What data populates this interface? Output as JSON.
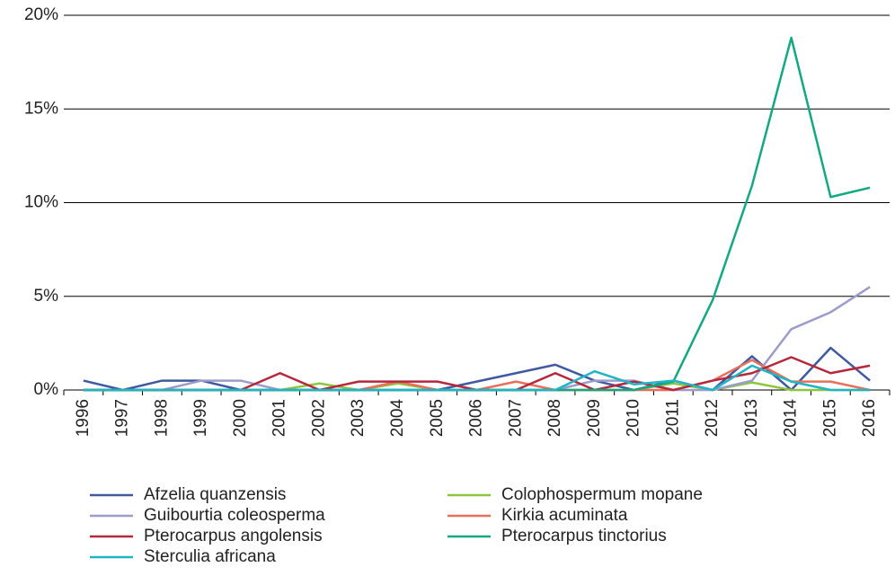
{
  "chart_data": {
    "type": "line",
    "categories": [
      "1996",
      "1997",
      "1998",
      "1999",
      "2000",
      "2001",
      "2002",
      "2003",
      "2004",
      "2005",
      "2006",
      "2007",
      "2008",
      "2009",
      "2010",
      "2011",
      "2012",
      "2013",
      "2014",
      "2015",
      "2016"
    ],
    "ylim": [
      0,
      20
    ],
    "yticks": [
      {
        "value": 0,
        "label": "0%"
      },
      {
        "value": 5,
        "label": "5%"
      },
      {
        "value": 10,
        "label": "10%"
      },
      {
        "value": 15,
        "label": "15%"
      },
      {
        "value": 20,
        "label": "20%"
      }
    ],
    "grid": true,
    "legend": "bottom",
    "series": [
      {
        "name": "Afzelia quanzensis",
        "color": "#3f5aa0",
        "values": [
          0.5,
          0,
          0.5,
          0.5,
          0,
          0,
          0,
          0,
          0,
          0,
          0.45,
          0.9,
          1.35,
          0.5,
          0,
          0.5,
          0,
          1.8,
          0,
          2.25,
          0.5
        ]
      },
      {
        "name": "Colophospermum mopane",
        "color": "#8cc63f",
        "values": [
          0,
          0,
          0,
          0,
          0,
          0,
          0.35,
          0,
          0.35,
          0,
          0,
          0,
          0,
          0,
          0,
          0.35,
          0,
          0.4,
          0,
          0,
          0
        ]
      },
      {
        "name": "Guibourtia coleosperma",
        "color": "#9c9ccb",
        "values": [
          0,
          0,
          0,
          0.5,
          0.5,
          0,
          0,
          0,
          0,
          0,
          0,
          0,
          0,
          0.5,
          0.5,
          0,
          0,
          0.5,
          3.25,
          4.15,
          5.5
        ]
      },
      {
        "name": "Kirkia acuminata",
        "color": "#e8705a",
        "values": [
          0,
          0,
          0,
          0,
          0,
          0,
          0,
          0,
          0.45,
          0,
          0,
          0.45,
          0,
          0,
          0,
          0,
          0.5,
          1.6,
          0.45,
          0.45,
          0
        ]
      },
      {
        "name": "Pterocarpus angolensis",
        "color": "#b5283c",
        "values": [
          0,
          0,
          0,
          0,
          0,
          0.9,
          0,
          0.45,
          0.45,
          0.45,
          0,
          0,
          0.9,
          0,
          0.45,
          0,
          0.5,
          0.9,
          1.75,
          0.9,
          1.3
        ]
      },
      {
        "name": "Pterocarpus tinctorius",
        "color": "#13a882",
        "values": [
          0,
          0,
          0,
          0,
          0,
          0,
          0,
          0,
          0,
          0,
          0,
          0,
          0,
          0,
          0,
          0.45,
          4.8,
          10.9,
          18.8,
          10.3,
          10.8
        ]
      },
      {
        "name": "Sterculia africana",
        "color": "#1fb5c4",
        "values": [
          0,
          0,
          0,
          0,
          0,
          0,
          0,
          0,
          0,
          0,
          0,
          0,
          0,
          1.0,
          0.3,
          0.5,
          0,
          1.3,
          0.45,
          0,
          0
        ]
      }
    ]
  }
}
